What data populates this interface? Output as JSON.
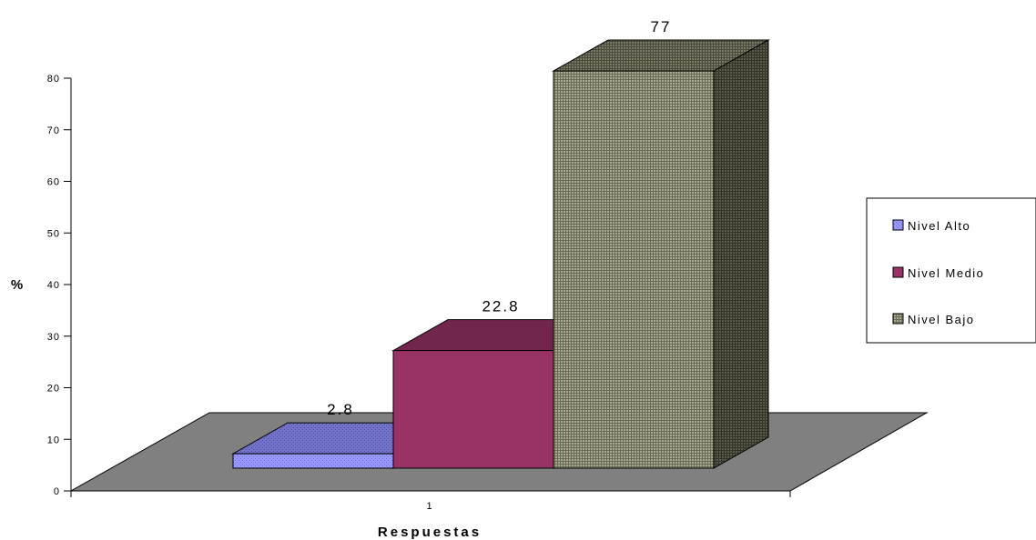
{
  "chart_data": {
    "type": "bar",
    "categories": [
      "1"
    ],
    "series": [
      {
        "name": "Nivel Alto",
        "values": [
          2.8
        ],
        "color": "#9999ff",
        "pattern": "dots"
      },
      {
        "name": "Nivel Medio",
        "values": [
          22.8
        ],
        "color": "#993366",
        "pattern": "solid"
      },
      {
        "name": "Nivel Bajo",
        "values": [
          77
        ],
        "color": "#8c8c74",
        "pattern": "grid"
      }
    ],
    "data_labels": [
      "2.8",
      "22.8",
      "77"
    ],
    "title": "",
    "xlabel": "Respuestas",
    "ylabel": "%",
    "ylim": [
      0,
      80
    ],
    "yticks": [
      "0",
      "10",
      "20",
      "30",
      "40",
      "50",
      "60",
      "70",
      "80"
    ],
    "view": "3d",
    "grid": false,
    "legend_position": "right",
    "floor_color": "#808080"
  }
}
